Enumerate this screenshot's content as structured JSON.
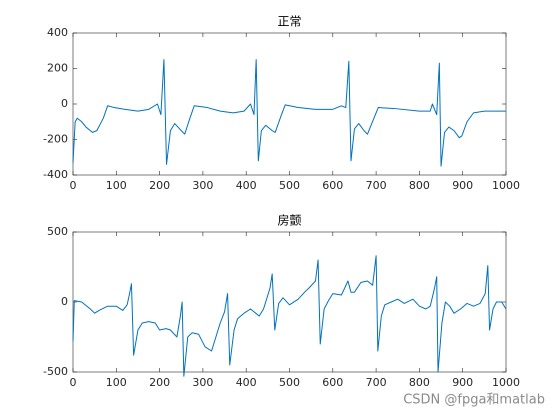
{
  "chart_data": [
    {
      "type": "line",
      "title": "正常",
      "color": "#0072BD",
      "x": [
        0,
        5,
        10,
        20,
        30,
        45,
        55,
        70,
        80,
        95,
        120,
        150,
        175,
        195,
        203,
        210,
        216,
        225,
        235,
        250,
        258,
        270,
        280,
        310,
        340,
        370,
        395,
        410,
        418,
        423,
        428,
        435,
        445,
        460,
        467,
        480,
        490,
        520,
        560,
        600,
        620,
        630,
        637,
        642,
        650,
        660,
        672,
        680,
        695,
        705,
        740,
        800,
        825,
        830,
        840,
        846,
        850,
        858,
        868,
        880,
        892,
        898,
        910,
        925,
        950,
        980,
        1000
      ],
      "values": [
        -330,
        -100,
        -80,
        -100,
        -130,
        -160,
        -150,
        -80,
        -10,
        -20,
        -30,
        -40,
        -30,
        0,
        -60,
        250,
        -340,
        -150,
        -110,
        -150,
        -170,
        -80,
        -10,
        -20,
        -40,
        -50,
        -40,
        0,
        -60,
        250,
        -320,
        -150,
        -120,
        -150,
        -160,
        -70,
        -5,
        -20,
        -30,
        -30,
        -10,
        -20,
        240,
        -320,
        -140,
        -110,
        -150,
        -170,
        -80,
        -20,
        -25,
        -40,
        -40,
        0,
        -60,
        230,
        -350,
        -160,
        -130,
        -150,
        -190,
        -180,
        -100,
        -50,
        -40,
        -40,
        -40
      ],
      "xlim": [
        0,
        1000
      ],
      "ylim": [
        -400,
        400
      ],
      "xticks": [
        0,
        100,
        200,
        300,
        400,
        500,
        600,
        700,
        800,
        900,
        1000
      ],
      "yticks": [
        -400,
        -200,
        0,
        200,
        400
      ]
    },
    {
      "type": "line",
      "title": "房颤",
      "color": "#0072BD",
      "x": [
        0,
        3,
        20,
        40,
        50,
        60,
        80,
        100,
        115,
        125,
        130,
        135,
        140,
        150,
        160,
        175,
        190,
        200,
        215,
        225,
        240,
        248,
        252,
        256,
        265,
        275,
        290,
        305,
        320,
        330,
        340,
        350,
        357,
        362,
        372,
        380,
        395,
        410,
        430,
        440,
        455,
        460,
        466,
        475,
        485,
        500,
        520,
        535,
        545,
        560,
        566,
        571,
        580,
        590,
        600,
        620,
        635,
        642,
        650,
        665,
        680,
        692,
        700,
        704,
        712,
        720,
        735,
        750,
        765,
        785,
        800,
        815,
        825,
        835,
        840,
        843,
        852,
        860,
        870,
        880,
        895,
        910,
        925,
        940,
        952,
        958,
        962,
        970,
        978,
        990,
        1000
      ],
      "values": [
        -280,
        10,
        0,
        -50,
        -80,
        -60,
        -30,
        -30,
        -60,
        -20,
        50,
        130,
        -380,
        -200,
        -150,
        -140,
        -150,
        -200,
        -190,
        -200,
        -250,
        -100,
        0,
        -530,
        -250,
        -220,
        -230,
        -320,
        -350,
        -250,
        -150,
        -70,
        60,
        -450,
        -200,
        -120,
        -80,
        -50,
        -100,
        -50,
        100,
        200,
        -200,
        -10,
        30,
        -20,
        20,
        70,
        100,
        150,
        300,
        -300,
        -50,
        10,
        60,
        50,
        150,
        70,
        70,
        140,
        150,
        120,
        330,
        -350,
        -100,
        -20,
        0,
        20,
        -10,
        20,
        -30,
        -50,
        -30,
        100,
        180,
        -500,
        -150,
        0,
        -30,
        -80,
        -50,
        -10,
        -30,
        -10,
        60,
        260,
        -200,
        -50,
        0,
        0,
        -50
      ],
      "xlim": [
        0,
        1000
      ],
      "ylim": [
        -500,
        500
      ],
      "xticks": [
        0,
        100,
        200,
        300,
        400,
        500,
        600,
        700,
        800,
        900,
        1000
      ],
      "yticks": [
        -500,
        0,
        500
      ]
    }
  ],
  "watermark": "CSDN @fpga和matlab"
}
